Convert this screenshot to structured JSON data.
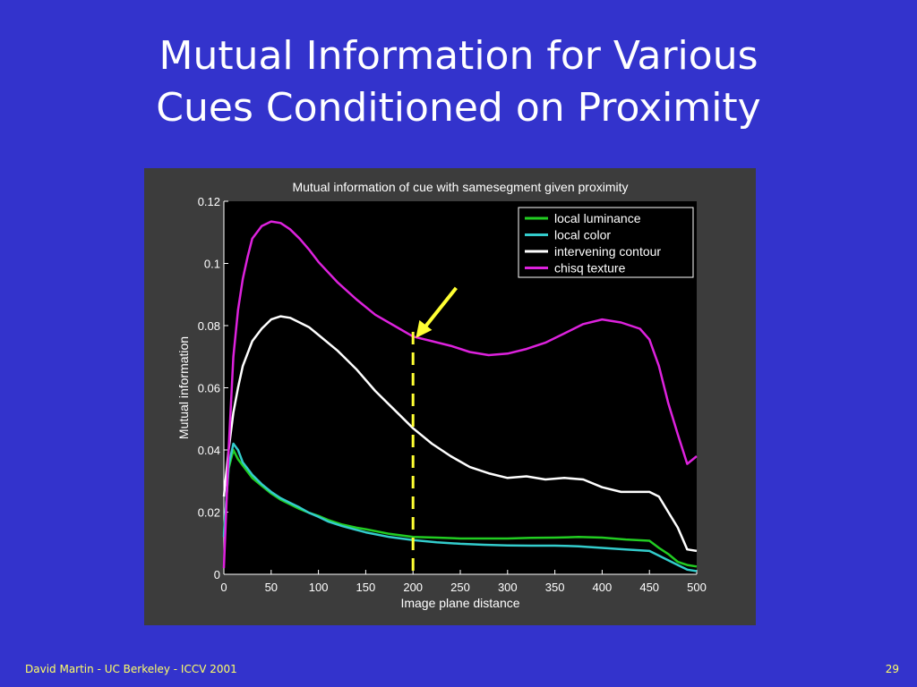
{
  "slide": {
    "title_line1": "Mutual Information for Various",
    "title_line2": "Cues Conditioned on Proximity",
    "footer_left": "David Martin - UC Berkeley - ICCV 2001",
    "page_number": "29"
  },
  "colors": {
    "background": "#3333cc",
    "text": "#ffffff",
    "footer": "#ffff66",
    "plot_area": "#000000",
    "panel": "#3c3c3c",
    "marker": "#ffff33"
  },
  "chart_data": {
    "type": "line",
    "title": "Mutual information of cue with samesegment given proximity",
    "xlabel": "Image plane distance",
    "ylabel": "Mutual information",
    "xlim": [
      0,
      500
    ],
    "ylim": [
      0,
      0.12
    ],
    "xticks": [
      0,
      50,
      100,
      150,
      200,
      250,
      300,
      350,
      400,
      450,
      500
    ],
    "yticks": [
      0,
      0.02,
      0.04,
      0.06,
      0.08,
      0.1,
      0.12
    ],
    "ytick_labels": [
      "0",
      "0.02",
      "0.04",
      "0.06",
      "0.08",
      "0.1",
      "0.12"
    ],
    "legend_position": "top-right",
    "marker_line_x": 200,
    "marker_arrow_target": [
      203,
      0.076
    ],
    "series": [
      {
        "name": "local luminance",
        "color": "#22cc22",
        "x": [
          0,
          5,
          10,
          15,
          20,
          30,
          40,
          50,
          60,
          70,
          80,
          90,
          100,
          110,
          125,
          140,
          150,
          175,
          200,
          225,
          250,
          275,
          300,
          325,
          350,
          375,
          400,
          425,
          450,
          460,
          470,
          480,
          490,
          500
        ],
        "y": [
          0.013,
          0.034,
          0.04,
          0.037,
          0.035,
          0.031,
          0.0285,
          0.026,
          0.024,
          0.0225,
          0.021,
          0.0198,
          0.0188,
          0.0175,
          0.016,
          0.015,
          0.0145,
          0.013,
          0.012,
          0.0118,
          0.0115,
          0.0115,
          0.0115,
          0.0117,
          0.0118,
          0.012,
          0.0118,
          0.0112,
          0.0108,
          0.0085,
          0.0065,
          0.004,
          0.003,
          0.0025
        ]
      },
      {
        "name": "local color",
        "color": "#33cccc",
        "x": [
          0,
          5,
          10,
          15,
          20,
          30,
          40,
          50,
          60,
          70,
          80,
          90,
          100,
          110,
          125,
          140,
          150,
          175,
          200,
          225,
          250,
          275,
          300,
          325,
          350,
          375,
          400,
          425,
          450,
          460,
          470,
          480,
          490,
          500
        ],
        "y": [
          0.012,
          0.035,
          0.042,
          0.04,
          0.036,
          0.032,
          0.029,
          0.0265,
          0.0245,
          0.023,
          0.0215,
          0.0198,
          0.0185,
          0.017,
          0.0155,
          0.0143,
          0.0135,
          0.012,
          0.011,
          0.0103,
          0.0098,
          0.0095,
          0.0093,
          0.0092,
          0.0092,
          0.009,
          0.0085,
          0.008,
          0.0075,
          0.006,
          0.0045,
          0.003,
          0.0015,
          0.001
        ]
      },
      {
        "name": "intervening contour",
        "color": "#ffffff",
        "x": [
          0,
          5,
          10,
          15,
          20,
          30,
          40,
          50,
          60,
          70,
          80,
          90,
          100,
          120,
          140,
          160,
          180,
          200,
          220,
          240,
          260,
          280,
          300,
          320,
          340,
          360,
          380,
          400,
          420,
          440,
          450,
          460,
          470,
          480,
          490,
          500
        ],
        "y": [
          0.025,
          0.04,
          0.052,
          0.06,
          0.067,
          0.075,
          0.079,
          0.082,
          0.083,
          0.0825,
          0.081,
          0.0795,
          0.077,
          0.072,
          0.066,
          0.059,
          0.053,
          0.047,
          0.042,
          0.038,
          0.0345,
          0.0325,
          0.031,
          0.0315,
          0.0305,
          0.031,
          0.0305,
          0.028,
          0.0265,
          0.0265,
          0.0265,
          0.025,
          0.02,
          0.015,
          0.008,
          0.0075
        ]
      },
      {
        "name": "chisq texture",
        "color": "#dd22dd",
        "x": [
          0,
          5,
          10,
          15,
          20,
          25,
          30,
          40,
          50,
          60,
          70,
          80,
          90,
          100,
          120,
          140,
          160,
          180,
          200,
          220,
          240,
          260,
          280,
          300,
          320,
          340,
          360,
          380,
          400,
          420,
          440,
          450,
          460,
          470,
          480,
          490,
          500
        ],
        "y": [
          0.002,
          0.04,
          0.07,
          0.085,
          0.095,
          0.102,
          0.108,
          0.112,
          0.1135,
          0.113,
          0.111,
          0.108,
          0.1045,
          0.1005,
          0.094,
          0.0885,
          0.0835,
          0.08,
          0.0765,
          0.075,
          0.0735,
          0.0715,
          0.0705,
          0.071,
          0.0725,
          0.0745,
          0.0775,
          0.0805,
          0.082,
          0.081,
          0.079,
          0.0755,
          0.067,
          0.055,
          0.045,
          0.0355,
          0.038
        ]
      }
    ]
  }
}
